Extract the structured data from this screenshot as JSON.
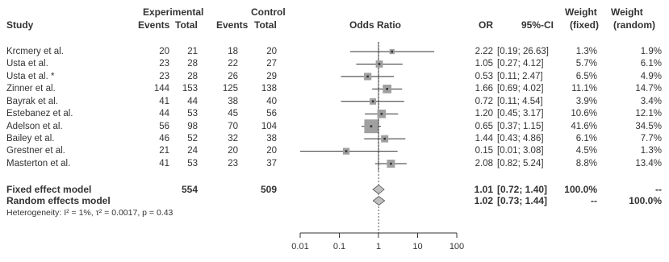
{
  "headers": {
    "study": "Study",
    "experimental": "Experimental",
    "control": "Control",
    "exp_events": "Events",
    "exp_total": "Total",
    "ctl_events": "Events",
    "ctl_total": "Total",
    "odds_ratio": "Odds Ratio",
    "or": "OR",
    "ci": "95%-CI",
    "weight": "Weight",
    "weight_fixed": "(fixed)",
    "weight_random": "(random)"
  },
  "studies": [
    {
      "study": "Krcmery et al.",
      "exp_events": "20",
      "exp_total": "21",
      "ctl_events": "18",
      "ctl_total": "20",
      "or_text": "2.22",
      "ci_text": "[0.19; 26.63]",
      "w_fixed": "1.3%",
      "w_random": "1.9%"
    },
    {
      "study": "Usta et al.",
      "exp_events": "23",
      "exp_total": "28",
      "ctl_events": "22",
      "ctl_total": "27",
      "or_text": "1.05",
      "ci_text": "[0.27;  4.12]",
      "w_fixed": "5.7%",
      "w_random": "6.1%"
    },
    {
      "study": "Usta et al. *",
      "exp_events": "23",
      "exp_total": "28",
      "ctl_events": "26",
      "ctl_total": "29",
      "or_text": "0.53",
      "ci_text": "[0.11;  2.47]",
      "w_fixed": "6.5%",
      "w_random": "4.9%"
    },
    {
      "study": "Zinner et al.",
      "exp_events": "144",
      "exp_total": "153",
      "ctl_events": "125",
      "ctl_total": "138",
      "or_text": "1.66",
      "ci_text": "[0.69;  4.02]",
      "w_fixed": "11.1%",
      "w_random": "14.7%"
    },
    {
      "study": "Bayrak et al.",
      "exp_events": "41",
      "exp_total": "44",
      "ctl_events": "38",
      "ctl_total": "40",
      "or_text": "0.72",
      "ci_text": "[0.11;  4.54]",
      "w_fixed": "3.9%",
      "w_random": "3.4%"
    },
    {
      "study": "Estebanez et al.",
      "exp_events": "44",
      "exp_total": "53",
      "ctl_events": "45",
      "ctl_total": "56",
      "or_text": "1.20",
      "ci_text": "[0.45;  3.17]",
      "w_fixed": "10.6%",
      "w_random": "12.1%"
    },
    {
      "study": "Adelson et al.",
      "exp_events": "56",
      "exp_total": "98",
      "ctl_events": "70",
      "ctl_total": "104",
      "or_text": "0.65",
      "ci_text": "[0.37;  1.15]",
      "w_fixed": "41.6%",
      "w_random": "34.5%"
    },
    {
      "study": "Bailey et al.",
      "exp_events": "46",
      "exp_total": "52",
      "ctl_events": "32",
      "ctl_total": "38",
      "or_text": "1.44",
      "ci_text": "[0.43;  4.86]",
      "w_fixed": "6.1%",
      "w_random": "7.7%"
    },
    {
      "study": "Grestner et al.",
      "exp_events": "21",
      "exp_total": "24",
      "ctl_events": "20",
      "ctl_total": "20",
      "or_text": "0.15",
      "ci_text": "[0.01;  3.08]",
      "w_fixed": "4.5%",
      "w_random": "1.3%"
    },
    {
      "study": "Masterton et al.",
      "exp_events": "41",
      "exp_total": "53",
      "ctl_events": "23",
      "ctl_total": "37",
      "or_text": "2.08",
      "ci_text": "[0.82;  5.24]",
      "w_fixed": "8.8%",
      "w_random": "13.4%"
    }
  ],
  "summary": {
    "fixed": {
      "label": "Fixed effect model",
      "exp_total": "554",
      "ctl_total": "509",
      "or_text": "1.01",
      "ci_text": "[0.72;  1.40]",
      "w_fixed": "100.0%",
      "w_random": "--"
    },
    "random": {
      "label": "Random effects model",
      "or_text": "1.02",
      "ci_text": "[0.73;  1.44]",
      "w_fixed": "--",
      "w_random": "100.0%"
    },
    "heterogeneity": "Heterogeneity: I² = 1%, τ² = 0.0017, p = 0.43"
  },
  "colors": {
    "text": "#333333",
    "square": "#a0a0a0",
    "ci_line": "#333333",
    "diamond_fill": "#c0c0c0",
    "dotted_line": "#555555"
  },
  "chart_data": {
    "type": "forest",
    "x_scale": "log",
    "x_ticks": [
      0.01,
      0.1,
      1,
      10,
      100
    ],
    "x_tick_labels": [
      "0.01",
      "0.1",
      "1",
      "10",
      "100"
    ],
    "xlim": [
      0.01,
      100
    ],
    "studies": [
      {
        "name": "Krcmery et al.",
        "or": 2.22,
        "lo": 0.19,
        "hi": 26.63,
        "w_fixed": 1.3
      },
      {
        "name": "Usta et al.",
        "or": 1.05,
        "lo": 0.27,
        "hi": 4.12,
        "w_fixed": 5.7
      },
      {
        "name": "Usta et al. *",
        "or": 0.53,
        "lo": 0.11,
        "hi": 2.47,
        "w_fixed": 6.5
      },
      {
        "name": "Zinner et al.",
        "or": 1.66,
        "lo": 0.69,
        "hi": 4.02,
        "w_fixed": 11.1
      },
      {
        "name": "Bayrak et al.",
        "or": 0.72,
        "lo": 0.11,
        "hi": 4.54,
        "w_fixed": 3.9
      },
      {
        "name": "Estebanez et al.",
        "or": 1.2,
        "lo": 0.45,
        "hi": 3.17,
        "w_fixed": 10.6
      },
      {
        "name": "Adelson et al.",
        "or": 0.65,
        "lo": 0.37,
        "hi": 1.15,
        "w_fixed": 41.6
      },
      {
        "name": "Bailey et al.",
        "or": 1.44,
        "lo": 0.43,
        "hi": 4.86,
        "w_fixed": 6.1
      },
      {
        "name": "Grestner et al.",
        "or": 0.15,
        "lo": 0.01,
        "hi": 3.08,
        "w_fixed": 4.5
      },
      {
        "name": "Masterton et al.",
        "or": 2.08,
        "lo": 0.82,
        "hi": 5.24,
        "w_fixed": 8.8
      }
    ],
    "fixed": {
      "or": 1.01,
      "lo": 0.72,
      "hi": 1.4
    },
    "random": {
      "or": 1.02,
      "lo": 0.73,
      "hi": 1.44
    }
  }
}
